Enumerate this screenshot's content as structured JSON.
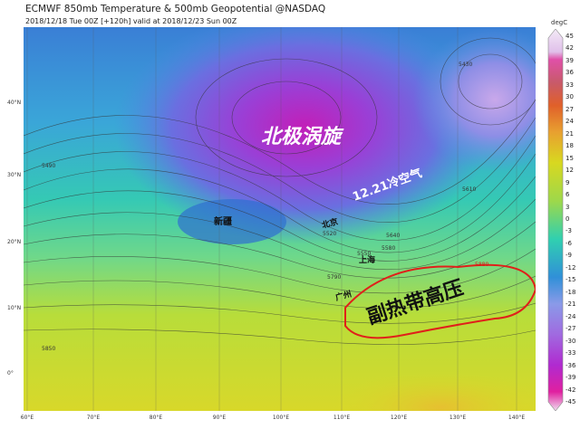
{
  "header": {
    "title": "ECMWF 850mb Temperature & 500mb Geopotential @NASDAQ",
    "subtitle": "2018/12/18 Tue 00Z [+120h] valid at 2018/12/23 Sun 00Z"
  },
  "map": {
    "annotations": {
      "polar_vortex": "北极涡旋",
      "cold_air": "12.21冷空气",
      "subtropical_high": "副热带高压",
      "xinjiang": "新疆",
      "beijing": "北京",
      "shanghai": "上海",
      "guangzhou": "广州"
    },
    "contour_labels": [
      "5430",
      "5490",
      "5520",
      "5550",
      "5580",
      "5610",
      "5640",
      "5790",
      "5850",
      "5880"
    ],
    "highlight_contour": {
      "value": "5880",
      "color": "#e0201a"
    },
    "lat_labels": [
      "40°N",
      "30°N",
      "20°N",
      "10°N",
      "0°"
    ],
    "lon_labels": [
      "60°E",
      "70°E",
      "80°E",
      "90°E",
      "100°E",
      "110°E",
      "120°E",
      "130°E",
      "140°E"
    ]
  },
  "colorbar": {
    "unit": "degC",
    "ticks": [
      "45",
      "42",
      "39",
      "36",
      "33",
      "30",
      "27",
      "24",
      "21",
      "18",
      "15",
      "12",
      "9",
      "6",
      "3",
      "0",
      "-3",
      "-6",
      "-9",
      "-12",
      "-15",
      "-18",
      "-21",
      "-24",
      "-27",
      "-30",
      "-33",
      "-36",
      "-39",
      "-42",
      "-45"
    ],
    "range": [
      -45,
      45
    ]
  }
}
